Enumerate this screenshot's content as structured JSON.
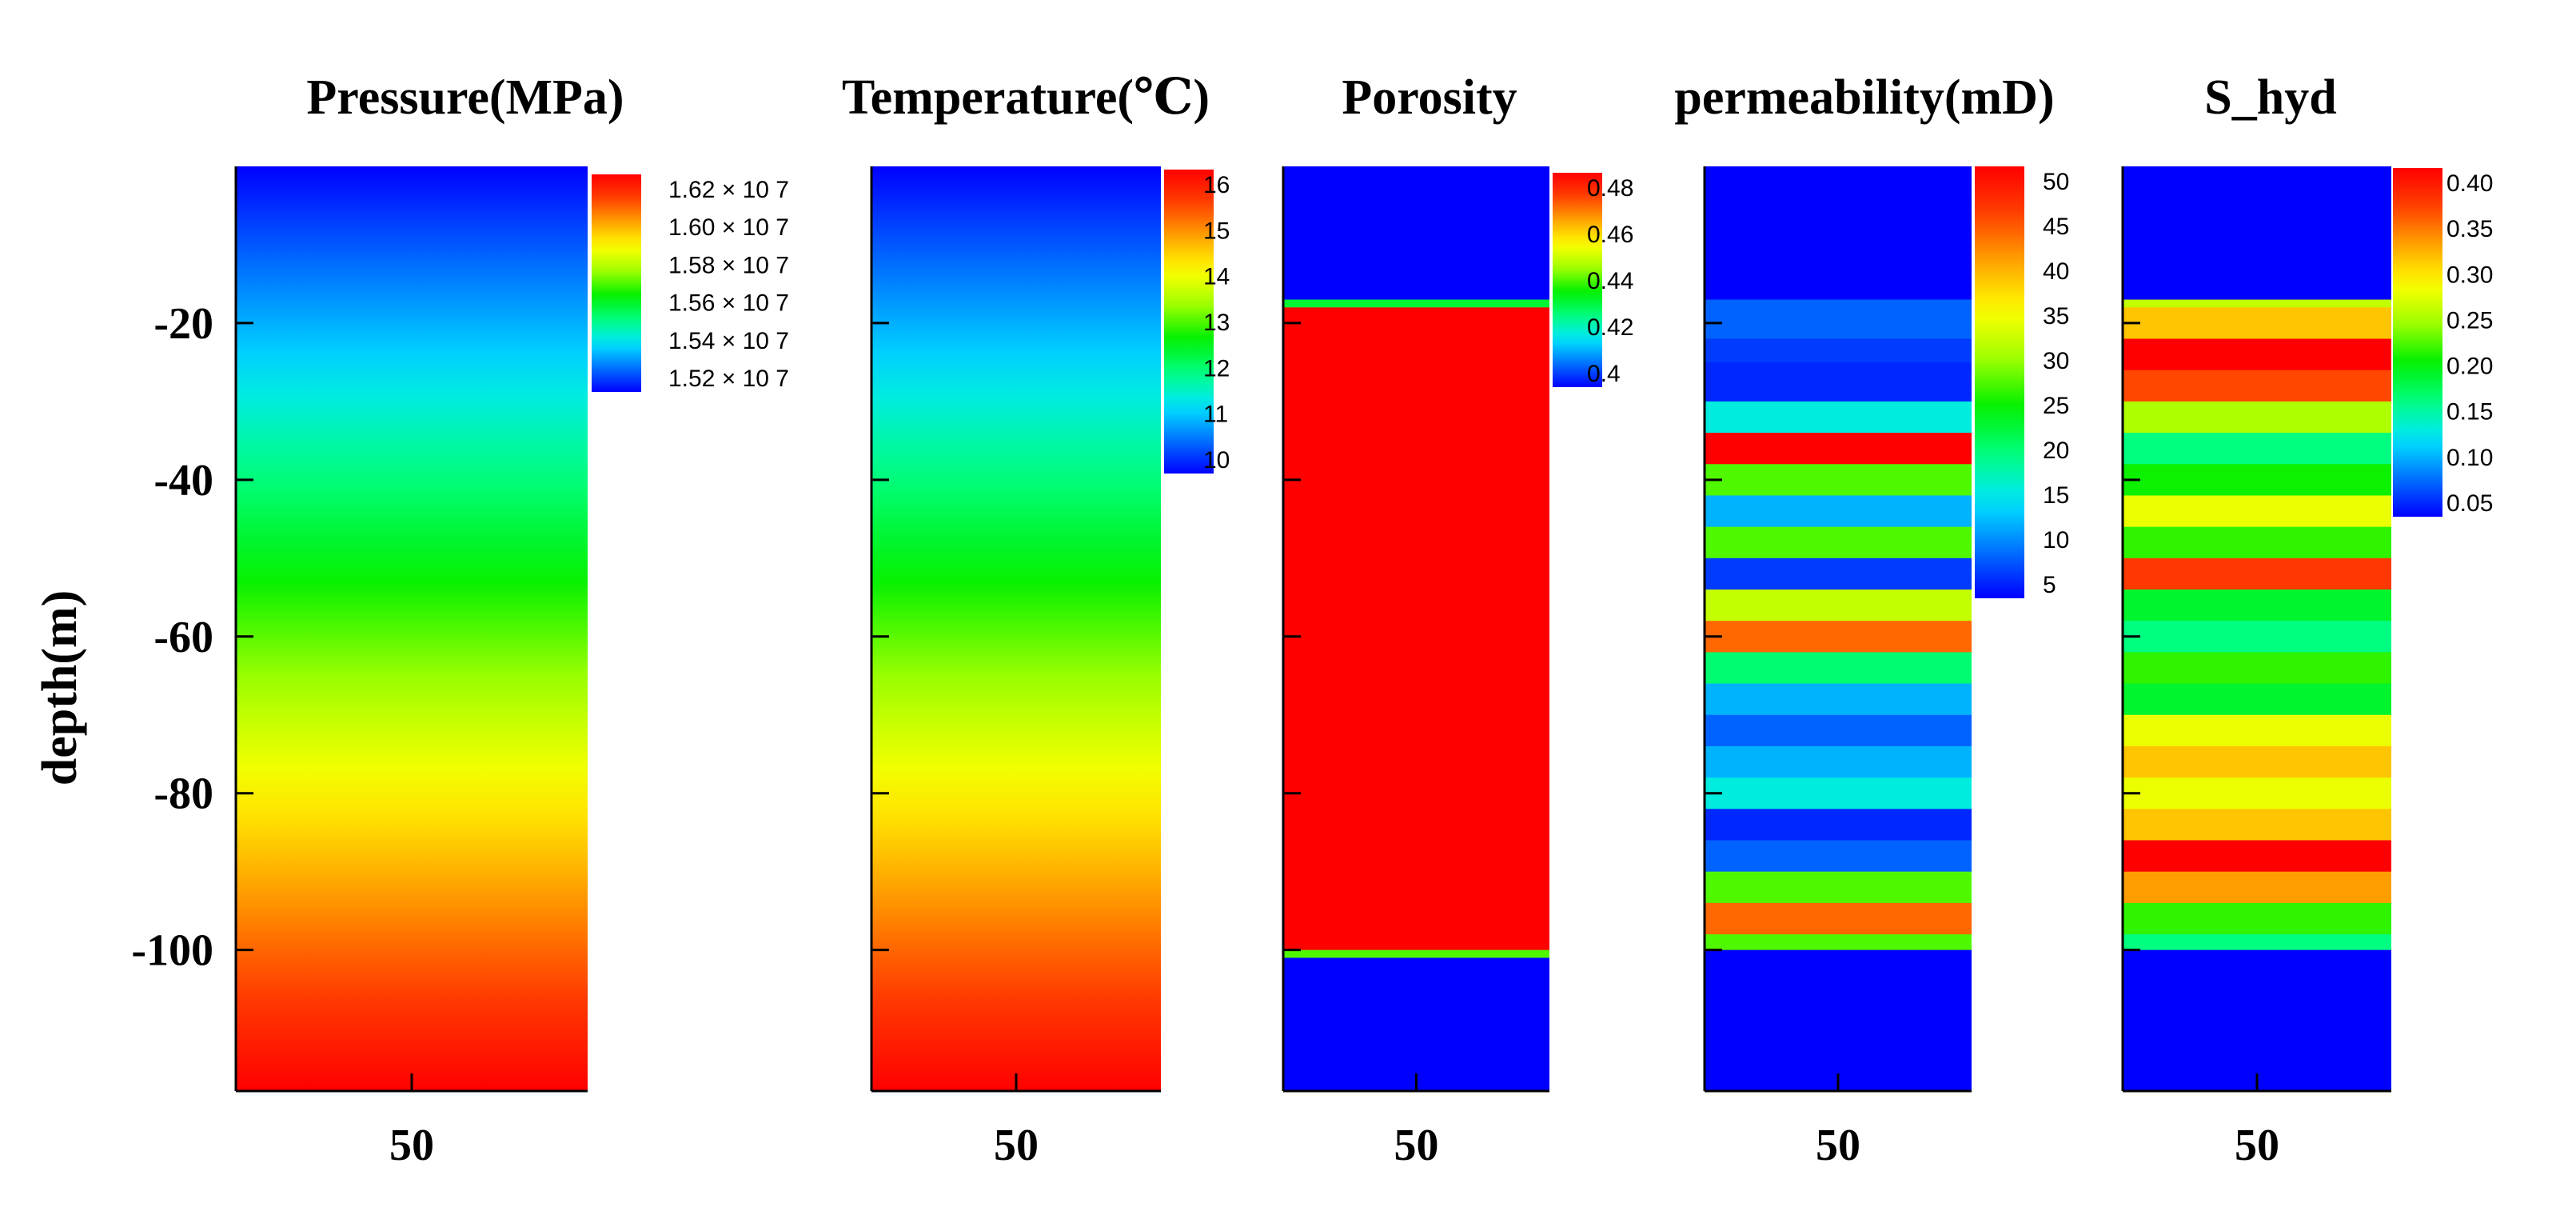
{
  "colors": {
    "colormap": [
      "#0000ff",
      "#0072ff",
      "#00e6ff",
      "#00ff80",
      "#00f000",
      "#a0ff00",
      "#ffff00",
      "#ffa500",
      "#ff4000",
      "#ff0000"
    ]
  },
  "chart_data": {
    "type": "heatmap",
    "ylabel": "depth(m)",
    "y_ticks": [
      -20,
      -40,
      -60,
      -80,
      -100
    ],
    "ylim": [
      -118,
      0
    ],
    "panels": [
      {
        "title": "Pressure(MPa)",
        "x_tick": "50",
        "fill": "gradient",
        "colorbar": {
          "ticks": [
            "1.62 × 10 7",
            "1.60 × 10 7",
            "1.58 × 10 7",
            "1.56 × 10 7",
            "1.54 × 10 7",
            "1.52 × 10 7"
          ],
          "range": [
            15150000.0,
            16250000.0
          ]
        },
        "profile": [
          {
            "depth": 0,
            "value": 15150000.0
          },
          {
            "depth": -118,
            "value": 16250000.0
          }
        ]
      },
      {
        "title": "Temperature(℃)",
        "x_tick": "50",
        "fill": "gradient",
        "colorbar": {
          "ticks": [
            "16",
            "15",
            "14",
            "13",
            "12",
            "11",
            "10"
          ],
          "range": [
            9.5,
            16.4
          ]
        },
        "profile": [
          {
            "depth": 0,
            "value": 9.5
          },
          {
            "depth": -118,
            "value": 16.4
          }
        ]
      },
      {
        "title": "Porosity",
        "x_tick": "50",
        "fill": "layers",
        "colorbar": {
          "ticks": [
            "0.48",
            "0.46",
            "0.44",
            "0.42",
            "0.4"
          ],
          "range": [
            0.39,
            0.49
          ]
        },
        "layers": [
          {
            "top": 0,
            "bottom": -17,
            "value": 0.39
          },
          {
            "top": -17,
            "bottom": -18,
            "value": 0.43
          },
          {
            "top": -18,
            "bottom": -100,
            "value": 0.49
          },
          {
            "top": -100,
            "bottom": -101,
            "value": 0.44
          },
          {
            "top": -101,
            "bottom": -118,
            "value": 0.39
          }
        ]
      },
      {
        "title": "permeability(mD)",
        "x_tick": "50",
        "fill": "layers",
        "colorbar": {
          "ticks": [
            "50",
            "45",
            "40",
            "35",
            "30",
            "25",
            "20",
            "15",
            "10",
            "5"
          ],
          "range": [
            1,
            53
          ]
        },
        "layers": [
          {
            "top": 0,
            "bottom": -17,
            "value": 1
          },
          {
            "top": -17,
            "bottom": -22,
            "value": 6
          },
          {
            "top": -22,
            "bottom": -25,
            "value": 4
          },
          {
            "top": -25,
            "bottom": -30,
            "value": 3
          },
          {
            "top": -30,
            "bottom": -34,
            "value": 14
          },
          {
            "top": -34,
            "bottom": -38,
            "value": 53
          },
          {
            "top": -38,
            "bottom": -42,
            "value": 27
          },
          {
            "top": -42,
            "bottom": -46,
            "value": 10
          },
          {
            "top": -46,
            "bottom": -50,
            "value": 27
          },
          {
            "top": -50,
            "bottom": -54,
            "value": 4
          },
          {
            "top": -54,
            "bottom": -58,
            "value": 32
          },
          {
            "top": -58,
            "bottom": -62,
            "value": 45
          },
          {
            "top": -62,
            "bottom": -66,
            "value": 19
          },
          {
            "top": -66,
            "bottom": -70,
            "value": 10
          },
          {
            "top": -70,
            "bottom": -74,
            "value": 6
          },
          {
            "top": -74,
            "bottom": -78,
            "value": 10
          },
          {
            "top": -78,
            "bottom": -82,
            "value": 14
          },
          {
            "top": -82,
            "bottom": -86,
            "value": 3
          },
          {
            "top": -86,
            "bottom": -90,
            "value": 6
          },
          {
            "top": -90,
            "bottom": -94,
            "value": 27
          },
          {
            "top": -94,
            "bottom": -98,
            "value": 45
          },
          {
            "top": -98,
            "bottom": -100,
            "value": 27
          },
          {
            "top": -100,
            "bottom": -118,
            "value": 1
          }
        ]
      },
      {
        "title": "S_hyd",
        "x_tick": "50",
        "fill": "layers",
        "colorbar": {
          "ticks": [
            "0.40",
            "0.35",
            "0.30",
            "0.25",
            "0.20",
            "0.15",
            "0.10",
            "0.05"
          ],
          "range": [
            0.0,
            0.42
          ]
        },
        "layers": [
          {
            "top": 0,
            "bottom": -17,
            "value": 0.0
          },
          {
            "top": -17,
            "bottom": -18,
            "value": 0.25
          },
          {
            "top": -18,
            "bottom": -22,
            "value": 0.31
          },
          {
            "top": -22,
            "bottom": -26,
            "value": 0.42
          },
          {
            "top": -26,
            "bottom": -30,
            "value": 0.37
          },
          {
            "top": -30,
            "bottom": -34,
            "value": 0.24
          },
          {
            "top": -34,
            "bottom": -38,
            "value": 0.14
          },
          {
            "top": -38,
            "bottom": -42,
            "value": 0.19
          },
          {
            "top": -42,
            "bottom": -46,
            "value": 0.27
          },
          {
            "top": -46,
            "bottom": -50,
            "value": 0.2
          },
          {
            "top": -50,
            "bottom": -54,
            "value": 0.38
          },
          {
            "top": -54,
            "bottom": -58,
            "value": 0.17
          },
          {
            "top": -58,
            "bottom": -62,
            "value": 0.14
          },
          {
            "top": -62,
            "bottom": -66,
            "value": 0.2
          },
          {
            "top": -66,
            "bottom": -70,
            "value": 0.17
          },
          {
            "top": -70,
            "bottom": -74,
            "value": 0.27
          },
          {
            "top": -74,
            "bottom": -78,
            "value": 0.31
          },
          {
            "top": -78,
            "bottom": -82,
            "value": 0.27
          },
          {
            "top": -82,
            "bottom": -86,
            "value": 0.31
          },
          {
            "top": -86,
            "bottom": -90,
            "value": 0.42
          },
          {
            "top": -90,
            "bottom": -94,
            "value": 0.33
          },
          {
            "top": -94,
            "bottom": -98,
            "value": 0.2
          },
          {
            "top": -98,
            "bottom": -100,
            "value": 0.14
          },
          {
            "top": -100,
            "bottom": -118,
            "value": 0.0
          }
        ]
      }
    ]
  }
}
